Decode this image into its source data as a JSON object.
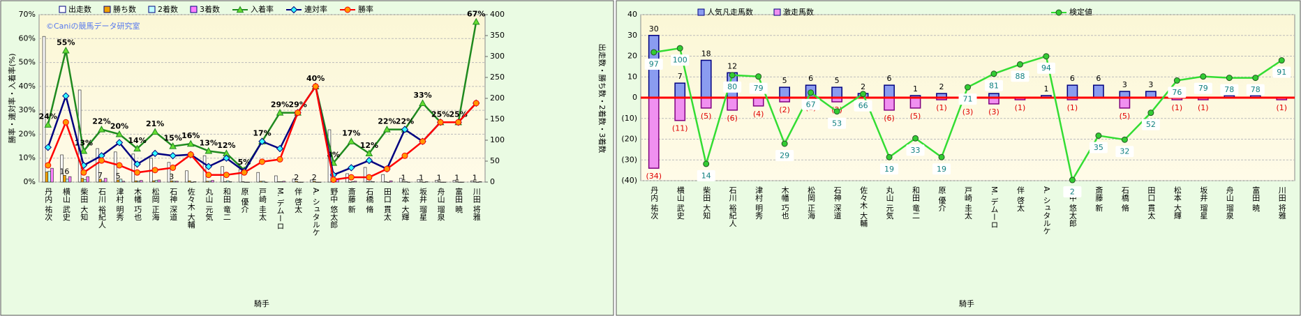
{
  "chart_data": [
    {
      "type": "bar",
      "bar_mode": "group",
      "watermark": "©Caniの競馬データ研究室",
      "ylabel": "勝率・連対率・入着率(%)",
      "y2label": "出走数・勝ち数・2着数・3着数",
      "xlabel": "騎手",
      "categories": [
        "丹内 祐次",
        "横山 武史",
        "柴田 大知",
        "石川 裕紀人",
        "津村 明秀",
        "木幡 巧也",
        "松岡 正海",
        "石神 深道",
        "佐々木 大輔",
        "丸山 元気",
        "和田 竜二",
        "原 優介",
        "戸崎 圭太",
        "M. デムーロ",
        "伴 啓太",
        "A. シュタルケ",
        "野中 悠太郎",
        "斎藤 新",
        "石橋 脩",
        "田口 貫太",
        "松本 大輝",
        "坂井 瑠星",
        "舟山 瑠泉",
        "富田 暁",
        "川田 将雅"
      ],
      "ylim": [
        0,
        70
      ],
      "yticks": [
        {
          "value": 0,
          "label": "0%"
        },
        {
          "value": 10,
          "label": "10%"
        },
        {
          "value": 20,
          "label": "20%"
        },
        {
          "value": 30,
          "label": "30%"
        },
        {
          "value": 40,
          "label": "40%"
        },
        {
          "value": 50,
          "label": "50%"
        },
        {
          "value": 60,
          "label": "60%"
        },
        {
          "value": 70,
          "label": "70%"
        }
      ],
      "y2lim": [
        0,
        400
      ],
      "y2ticks": [
        0,
        50,
        100,
        150,
        200,
        250,
        300,
        350,
        400
      ],
      "grid": true,
      "series": [
        {
          "name": "出走数",
          "axis": "y2",
          "color": "#ffffff",
          "values": [
            348,
            65,
            220,
            80,
            72,
            67,
            57,
            47,
            27,
            63,
            37,
            30,
            23,
            15,
            7,
            5,
            125,
            20,
            35,
            18,
            9,
            6,
            4,
            4,
            3
          ]
        },
        {
          "name": "勝ち数",
          "axis": "y2",
          "color": "#f0a000",
          "values": [
            24,
            16,
            9,
            7,
            5,
            3,
            3,
            3,
            3,
            2,
            1,
            1,
            2,
            1,
            2,
            2,
            1,
            0,
            1,
            1,
            1,
            1,
            1,
            1,
            1
          ],
          "value_labels": [
            null,
            "16",
            null,
            "7",
            "5",
            null,
            null,
            "3",
            null,
            null,
            null,
            null,
            null,
            null,
            "2",
            "2",
            null,
            null,
            null,
            null,
            "1",
            "1",
            "1",
            "1",
            "1"
          ]
        },
        {
          "name": "2着数",
          "axis": "y2",
          "color": "#bfffff",
          "values": [
            26,
            7,
            6,
            2,
            7,
            2,
            4,
            2,
            0,
            2,
            3,
            0,
            2,
            1,
            0,
            0,
            3,
            1,
            2,
            0,
            1,
            0,
            0,
            0,
            0
          ]
        },
        {
          "name": "3着数",
          "axis": "y2",
          "color": "#ff80ff",
          "values": [
            33,
            13,
            13,
            9,
            2,
            4,
            5,
            2,
            1,
            4,
            1,
            0,
            0,
            2,
            0,
            0,
            6,
            2,
            1,
            3,
            0,
            1,
            0,
            0,
            1
          ]
        },
        {
          "name": "入着率",
          "type": "line",
          "marker": "triangle",
          "color": "#1f8a1f",
          "marker_color": "#66dd33",
          "values": [
            24,
            55,
            13,
            22,
            20,
            14,
            21,
            15,
            16,
            13,
            12,
            5,
            17,
            29,
            29,
            40,
            8,
            17,
            12,
            22,
            22,
            33,
            25,
            25,
            67
          ],
          "value_labels": [
            "24%",
            "55%",
            "13%",
            "22%",
            "20%",
            "14%",
            "21%",
            "15%",
            "16%",
            "13%",
            "12%",
            "5%",
            "17%",
            "29%",
            "29%",
            "40%",
            "8%",
            "17%",
            "12%",
            "22%",
            "22%",
            "33%",
            "25%",
            "25%",
            "67%"
          ]
        },
        {
          "name": "連対率",
          "type": "line",
          "marker": "diamond",
          "color": "#000080",
          "marker_color": "#33ffff",
          "values": [
            14.5,
            36,
            7,
            11,
            16.5,
            7.5,
            12,
            11,
            11.5,
            6.5,
            10,
            4.5,
            17,
            14,
            29,
            40,
            3,
            6,
            9,
            5.5,
            22,
            17,
            25,
            25,
            33
          ]
        },
        {
          "name": "勝率",
          "type": "line",
          "marker": "circle",
          "color": "#ff0000",
          "marker_color": "#ff9900",
          "values": [
            7,
            25,
            4,
            9,
            7,
            4,
            5,
            6,
            11.5,
            3,
            3,
            4,
            8.5,
            9.5,
            29,
            40,
            1,
            2,
            2,
            5.5,
            11,
            17,
            25,
            25,
            33
          ]
        }
      ]
    },
    {
      "type": "bar",
      "bar_mode": "overlay",
      "xlabel": "騎手",
      "categories": [
        "丹内 祐次",
        "横山 武史",
        "柴田 大知",
        "石川 裕紀人",
        "津村 明秀",
        "木幡 巧也",
        "松岡 正海",
        "石神 深道",
        "佐々木 大輔",
        "丸山 元気",
        "和田 竜二",
        "原 優介",
        "戸崎 圭太",
        "M. デムーロ",
        "伴 啓太",
        "A. シュタルケ",
        "野中 悠太郎",
        "斎藤 新",
        "石橋 脩",
        "田口 貫太",
        "松本 大輝",
        "坂井 瑠星",
        "舟山 瑠泉",
        "富田 暁",
        "川田 将雅"
      ],
      "ylim": [
        -40,
        40
      ],
      "yticks": [
        {
          "value": -40,
          "label": "(40)"
        },
        {
          "value": -30,
          "label": "(30)"
        },
        {
          "value": -20,
          "label": "(20)"
        },
        {
          "value": -10,
          "label": "(10)"
        },
        0,
        10,
        20,
        30,
        40
      ],
      "grid": true,
      "y2lim": [
        1.5,
        125
      ],
      "series": [
        {
          "name": "人気凡走馬数",
          "color": "#8a9cf0",
          "values": [
            30,
            7,
            18,
            12,
            0,
            5,
            6,
            5,
            2,
            6,
            1,
            2,
            0,
            2,
            0,
            1,
            6,
            6,
            3,
            3,
            0,
            0,
            1,
            1,
            0
          ],
          "value_labels": [
            "30",
            "7",
            "18",
            "12",
            null,
            "5",
            "6",
            "5",
            "2",
            "6",
            "1",
            "2",
            null,
            null,
            null,
            "1",
            "6",
            "6",
            "3",
            "3",
            null,
            null,
            null,
            null,
            null
          ]
        },
        {
          "name": "激走馬数",
          "color": "#f090f0",
          "values": [
            -34,
            -11,
            -5,
            -6,
            -4,
            -2,
            -1,
            -2,
            0,
            -6,
            -5,
            -1,
            -3,
            -3,
            -1,
            0,
            -1,
            0,
            -5,
            0,
            -1,
            -1,
            0,
            0,
            -1
          ],
          "value_labels": [
            "(34)",
            "(11)",
            "(5)",
            "(6)",
            "(4)",
            "(2)",
            "(1)",
            "(2)",
            null,
            "(6)",
            "(5)",
            "(1)",
            "(3)",
            "(3)",
            "(1)",
            null,
            "(1)",
            null,
            "(5)",
            null,
            "(1)",
            "(1)",
            null,
            null,
            "(1)"
          ]
        },
        {
          "name": "検定値",
          "type": "line",
          "axis": "y2",
          "marker": "circle",
          "color": "#33dd33",
          "marker_color": "#33cc33",
          "values": [
            97,
            100,
            14,
            80,
            79,
            29,
            67,
            53,
            66,
            19,
            33,
            19,
            71,
            81,
            88,
            94,
            2,
            35,
            32,
            52,
            76,
            79,
            78,
            78,
            91
          ]
        }
      ]
    }
  ]
}
